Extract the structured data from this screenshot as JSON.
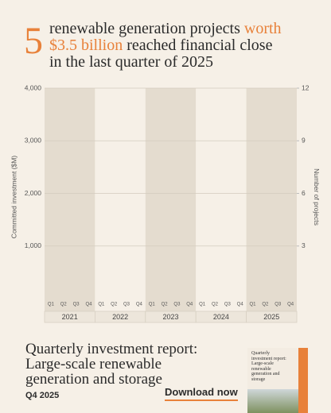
{
  "chart_data": {
    "type": "bar",
    "title": {
      "number": "5",
      "text_before": "renewable generation projects",
      "highlight": "worth $3.5 billion",
      "text_after": "reached financial close in the last quarter of 2025"
    },
    "y_label": "Committed investment ($M)",
    "y2_label": "Number of projects",
    "categories": [
      "Q1",
      "Q2",
      "Q3",
      "Q4",
      "Q1",
      "Q2",
      "Q3",
      "Q4",
      "Q1",
      "Q2",
      "Q3",
      "Q4",
      "Q1",
      "Q2",
      "Q3",
      "Q4",
      "Q1",
      "Q2",
      "Q3",
      "Q4"
    ],
    "groups": [
      "2021",
      "2022",
      "2023",
      "2024",
      "2025"
    ],
    "ylim": [
      0,
      4000
    ],
    "yticks": [
      {
        "value": 1000,
        "label": "1,000"
      },
      {
        "value": 2000,
        "label": "2,000"
      },
      {
        "value": 3000,
        "label": "3,000"
      },
      {
        "value": 4000,
        "label": "4,000"
      }
    ],
    "y2lim": [
      0,
      12
    ],
    "y2ticks": [
      3,
      6,
      9,
      12
    ],
    "grid": true
  },
  "footer": {
    "title": "Quarterly investment report: Large-scale renewable generation and storage",
    "period": "Q4 2025",
    "button": "Download now",
    "thumbnail_title": "Quarterly investment report: Large-scale renewable generation and storage"
  }
}
